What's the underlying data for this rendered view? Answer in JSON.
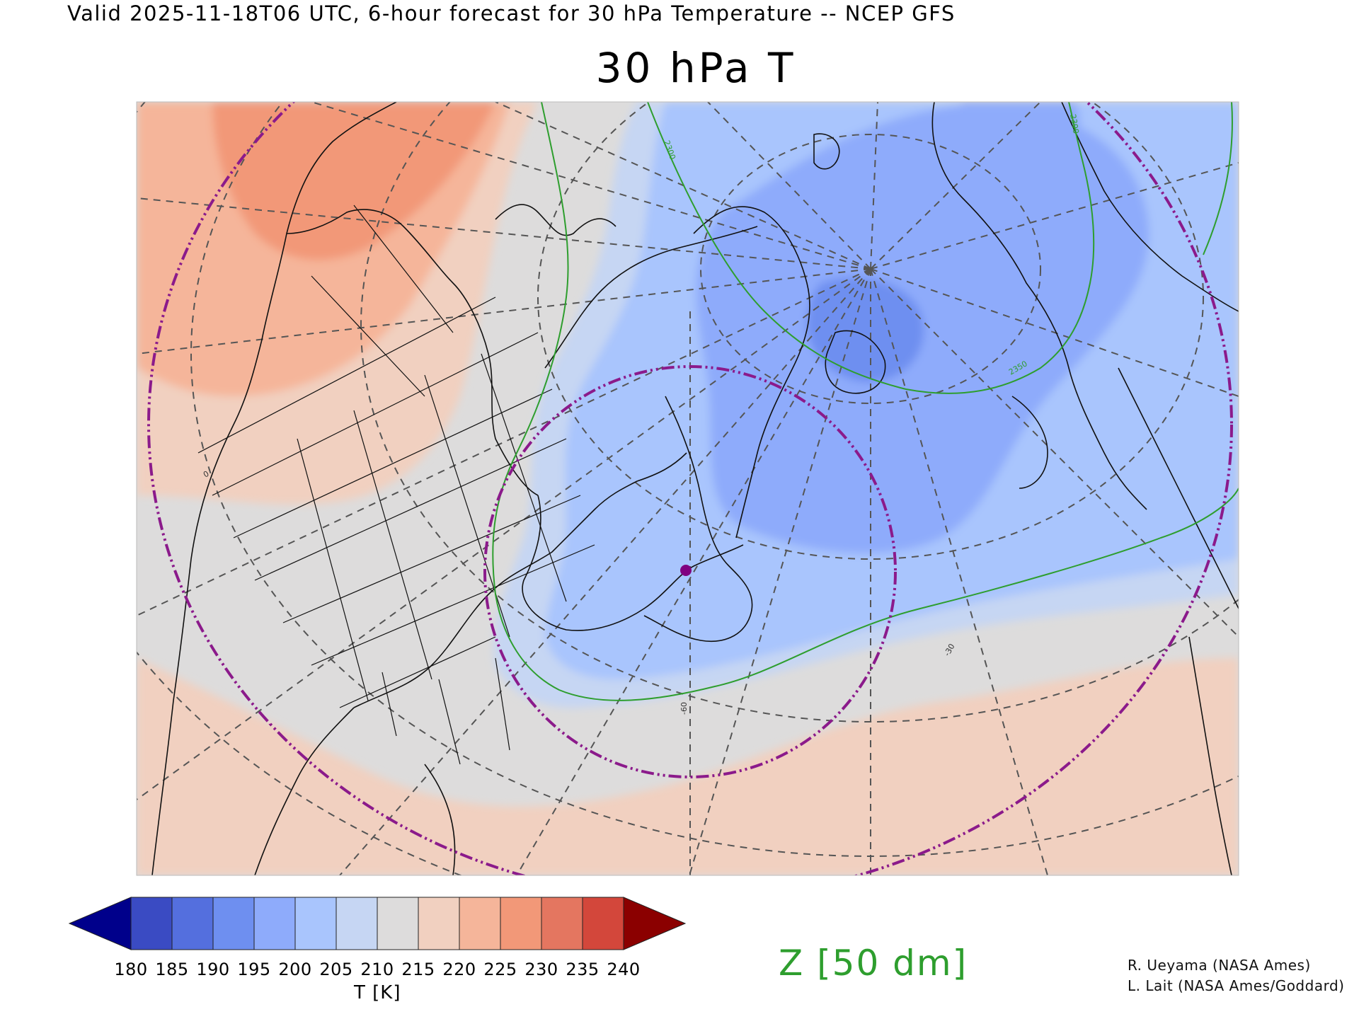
{
  "header": {
    "valid_line": "Valid 2025-11-18T06 UTC, 6-hour forecast for 30 hPa Temperature -- NCEP GFS",
    "title": "30 hPa T"
  },
  "colorbar": {
    "unit_label": "T [K]",
    "ticks": [
      "180",
      "185",
      "190",
      "195",
      "200",
      "205",
      "210",
      "215",
      "220",
      "225",
      "230",
      "235",
      "240"
    ],
    "colors": [
      "#00008b",
      "#3a4bc3",
      "#546fde",
      "#6e8ff0",
      "#8eabfb",
      "#a9c5fd",
      "#c6d6f3",
      "#dddcdc",
      "#f1d0c0",
      "#f5b59a",
      "#f29878",
      "#e47660",
      "#d3473b",
      "#8b0000"
    ]
  },
  "contour": {
    "label": "Z [50 dm]",
    "color": "#2e9e2e",
    "inline_labels": [
      "2300",
      "2300",
      "2350"
    ]
  },
  "map": {
    "grid_labels": [
      "-60",
      "-30",
      "0"
    ],
    "ring_color": "#8b1a8b",
    "point_color": "#800080"
  },
  "credits": {
    "line1": "R. Ueyama (NASA Ames)",
    "line2": "L. Lait (NASA Ames/Goddard)"
  }
}
